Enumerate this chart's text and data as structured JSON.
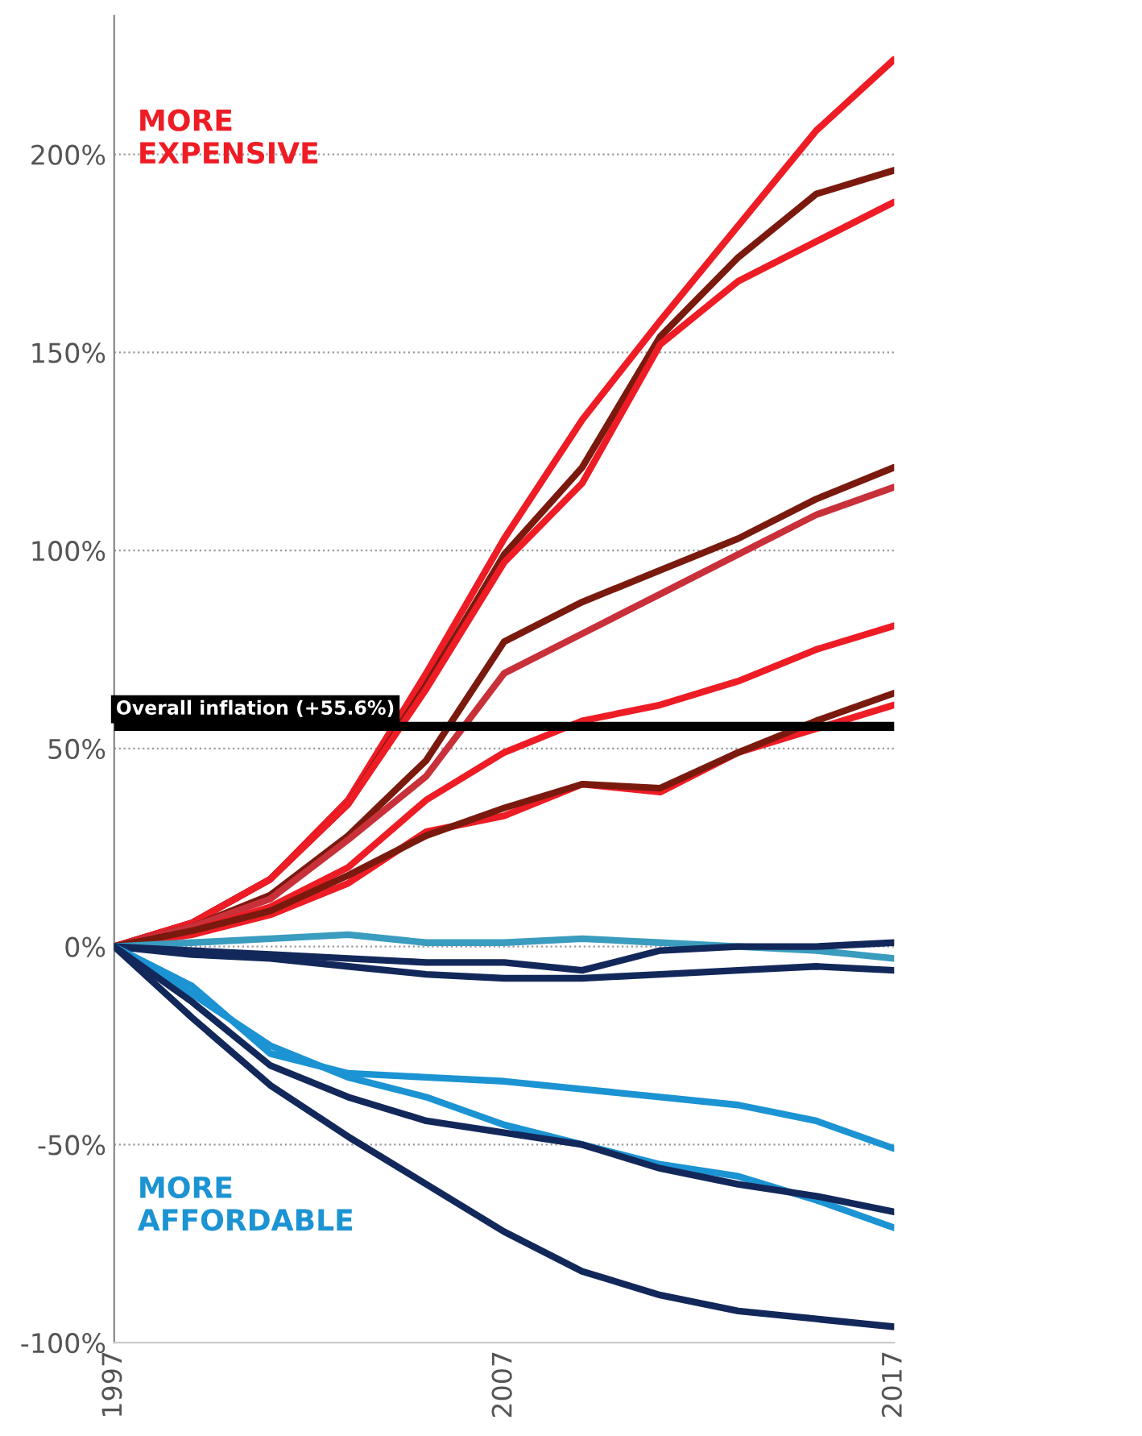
{
  "chart_data": {
    "type": "line",
    "x": [
      1997,
      1999,
      2001,
      2003,
      2005,
      2007,
      2009,
      2011,
      2013,
      2015,
      2017
    ],
    "series": [
      {
        "color": "#ee1c25",
        "values": [
          0,
          6,
          17,
          37,
          69,
          103,
          133,
          158,
          182,
          206,
          224
        ]
      },
      {
        "color": "#7a1a0e",
        "values": [
          0,
          6,
          17,
          36,
          66,
          99,
          121,
          154,
          174,
          190,
          196
        ]
      },
      {
        "color": "#ee1c25",
        "values": [
          0,
          6,
          17,
          36,
          65,
          97,
          117,
          152,
          168,
          178,
          188
        ]
      },
      {
        "color": "#7a1a0e",
        "values": [
          0,
          5,
          13,
          28,
          47,
          77,
          87,
          95,
          103,
          113,
          121
        ]
      },
      {
        "color": "#c8303a",
        "values": [
          0,
          5,
          12,
          27,
          43,
          69,
          79,
          89,
          99,
          109,
          116
        ]
      },
      {
        "color": "#ee1c25",
        "values": [
          0,
          4,
          10,
          20,
          37,
          49,
          57,
          61,
          67,
          75,
          81
        ]
      },
      {
        "color": "#ee1c25",
        "values": [
          0,
          3,
          8,
          16,
          29,
          33,
          41,
          39,
          49,
          55,
          61
        ]
      },
      {
        "color": "#7a1a0e",
        "values": [
          0,
          4,
          9,
          18,
          28,
          35,
          41,
          40,
          49,
          57,
          64
        ]
      },
      {
        "color": "#3a9cbf",
        "values": [
          0,
          1,
          2,
          3,
          1,
          1,
          2,
          1,
          0,
          -1,
          -3
        ]
      },
      {
        "color": "#13285a",
        "values": [
          0,
          -1,
          -2,
          -3,
          -4,
          -4,
          -6,
          -1,
          0,
          0,
          1
        ]
      },
      {
        "color": "#13285a",
        "values": [
          0,
          -2,
          -3,
          -5,
          -7,
          -8,
          -8,
          -7,
          -6,
          -5,
          -6
        ]
      },
      {
        "color": "#1c93d2",
        "values": [
          0,
          -10,
          -27,
          -32,
          -33,
          -34,
          -36,
          -38,
          -40,
          -44,
          -51
        ]
      },
      {
        "color": "#1c93d2",
        "values": [
          0,
          -12,
          -25,
          -33,
          -38,
          -45,
          -50,
          -55,
          -58,
          -64,
          -71
        ]
      },
      {
        "color": "#13285a",
        "values": [
          0,
          -14,
          -30,
          -38,
          -44,
          -47,
          -50,
          -56,
          -60,
          -63,
          -67
        ]
      },
      {
        "color": "#13285a",
        "values": [
          0,
          -18,
          -35,
          -48,
          -60,
          -72,
          -82,
          -88,
          -92,
          -94,
          -96
        ]
      }
    ],
    "xlim": [
      1997,
      2017
    ],
    "xticks": [
      1997,
      2007,
      2017
    ],
    "ylim": [
      -100,
      235
    ],
    "yticks": [
      {
        "value": -100,
        "label": "-100%"
      },
      {
        "value": -50,
        "label": "-50%"
      },
      {
        "value": 0,
        "label": "0%"
      },
      {
        "value": 50,
        "label": "50%"
      },
      {
        "value": 100,
        "label": "100%"
      },
      {
        "value": 150,
        "label": "150%"
      },
      {
        "value": 200,
        "label": "200%"
      }
    ],
    "grid": "y",
    "ref_lines": [
      {
        "axis": "y",
        "value": 55.6,
        "label": "Overall inflation (+55.6%)",
        "color": "#000000"
      }
    ],
    "annotations": [
      "MORE\nEXPENSIVE",
      "MORE\nAFFORDABLE"
    ],
    "legend": false,
    "marker": "none",
    "line_style": "solid"
  }
}
